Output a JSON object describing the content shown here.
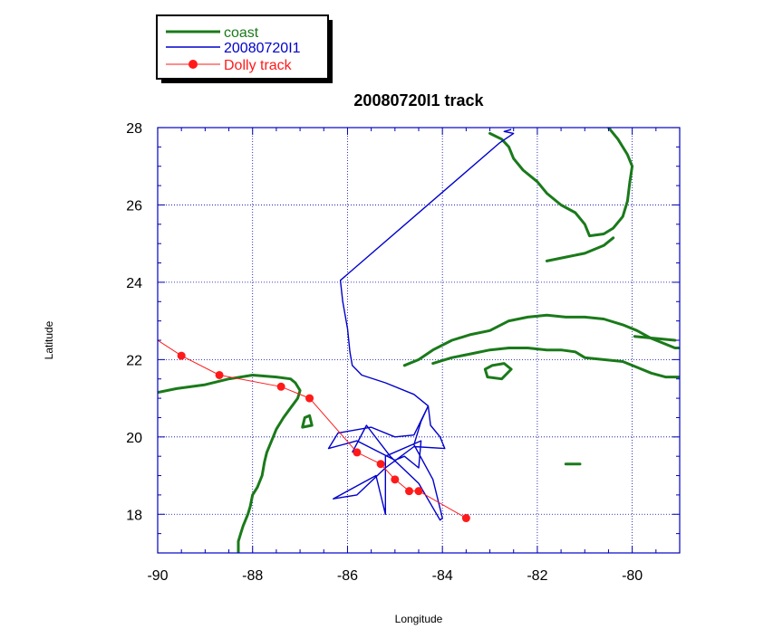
{
  "chart_data": {
    "type": "line",
    "title": "20080720I1 track",
    "xlabel": "Longitude",
    "ylabel": "Latitude",
    "xlim": [
      -90,
      -79
    ],
    "ylim": [
      17,
      28
    ],
    "xticks": [
      -90,
      -88,
      -86,
      -84,
      -82,
      -80
    ],
    "yticks": [
      18,
      20,
      22,
      24,
      26,
      28
    ],
    "xtick_labels": [
      "-90",
      "-88",
      "-86",
      "-84",
      "-82",
      "-80"
    ],
    "ytick_labels": [
      "18",
      "20",
      "22",
      "24",
      "26",
      "28"
    ],
    "grid": true,
    "legend_position": "top-left, outside plot",
    "colors": {
      "coast": "#1a7a1a",
      "flight": "#0000cc",
      "storm": "#ff1a1a",
      "grid": "#0000aa"
    },
    "series": [
      {
        "name": "coast",
        "segments": [
          [
            [
              -90,
              21.15
            ],
            [
              -89.6,
              21.25
            ],
            [
              -89.0,
              21.35
            ],
            [
              -88.5,
              21.5
            ],
            [
              -88.0,
              21.6
            ],
            [
              -87.5,
              21.55
            ],
            [
              -87.2,
              21.5
            ],
            [
              -87.1,
              21.4
            ],
            [
              -87.0,
              21.2
            ],
            [
              -87.05,
              21.0
            ],
            [
              -87.2,
              20.75
            ],
            [
              -87.35,
              20.5
            ],
            [
              -87.5,
              20.2
            ],
            [
              -87.6,
              19.9
            ],
            [
              -87.7,
              19.6
            ],
            [
              -87.75,
              19.35
            ],
            [
              -87.8,
              19.0
            ],
            [
              -87.9,
              18.7
            ],
            [
              -88.0,
              18.5
            ],
            [
              -88.05,
              18.2
            ],
            [
              -88.1,
              18.0
            ],
            [
              -88.2,
              17.7
            ],
            [
              -88.25,
              17.5
            ],
            [
              -88.3,
              17.3
            ],
            [
              -88.3,
              17.0
            ]
          ],
          [
            [
              -86.8,
              20.55
            ],
            [
              -86.75,
              20.3
            ],
            [
              -86.95,
              20.25
            ],
            [
              -86.9,
              20.5
            ],
            [
              -86.8,
              20.55
            ]
          ],
          [
            [
              -83.0,
              27.85
            ],
            [
              -82.75,
              27.7
            ],
            [
              -82.6,
              27.5
            ],
            [
              -82.5,
              27.2
            ],
            [
              -82.3,
              26.9
            ],
            [
              -82.0,
              26.6
            ],
            [
              -81.8,
              26.3
            ],
            [
              -81.5,
              26.0
            ],
            [
              -81.2,
              25.8
            ],
            [
              -81.0,
              25.5
            ],
            [
              -80.9,
              25.2
            ],
            [
              -80.6,
              25.25
            ],
            [
              -80.4,
              25.4
            ],
            [
              -80.2,
              25.7
            ],
            [
              -80.1,
              26.1
            ],
            [
              -80.05,
              26.6
            ],
            [
              -80.0,
              27.0
            ],
            [
              -80.1,
              27.3
            ],
            [
              -80.3,
              27.7
            ],
            [
              -80.5,
              28.0
            ]
          ],
          [
            [
              -81.8,
              24.55
            ],
            [
              -81.4,
              24.65
            ],
            [
              -81.0,
              24.75
            ],
            [
              -80.6,
              24.95
            ],
            [
              -80.4,
              25.15
            ]
          ],
          [
            [
              -84.8,
              21.85
            ],
            [
              -84.5,
              22.0
            ],
            [
              -84.2,
              22.25
            ],
            [
              -83.8,
              22.5
            ],
            [
              -83.4,
              22.65
            ],
            [
              -83.0,
              22.75
            ],
            [
              -82.6,
              23.0
            ],
            [
              -82.2,
              23.1
            ],
            [
              -81.8,
              23.15
            ],
            [
              -81.4,
              23.1
            ],
            [
              -81.0,
              23.1
            ],
            [
              -80.6,
              23.05
            ],
            [
              -80.2,
              22.9
            ],
            [
              -79.9,
              22.75
            ],
            [
              -79.6,
              22.55
            ],
            [
              -79.4,
              22.45
            ],
            [
              -79.1,
              22.3
            ],
            [
              -79.0,
              22.3
            ]
          ],
          [
            [
              -84.2,
              21.9
            ],
            [
              -83.8,
              22.05
            ],
            [
              -83.4,
              22.15
            ],
            [
              -83.0,
              22.25
            ],
            [
              -82.6,
              22.3
            ],
            [
              -82.2,
              22.3
            ],
            [
              -81.8,
              22.25
            ],
            [
              -81.5,
              22.25
            ],
            [
              -81.2,
              22.2
            ],
            [
              -81.0,
              22.05
            ],
            [
              -80.6,
              22.0
            ],
            [
              -80.2,
              21.95
            ],
            [
              -79.9,
              21.8
            ],
            [
              -79.6,
              21.65
            ],
            [
              -79.3,
              21.55
            ],
            [
              -79.0,
              21.55
            ]
          ],
          [
            [
              -82.95,
              21.85
            ],
            [
              -82.7,
              21.9
            ],
            [
              -82.55,
              21.75
            ],
            [
              -82.75,
              21.5
            ],
            [
              -83.05,
              21.55
            ],
            [
              -83.1,
              21.75
            ],
            [
              -82.95,
              21.85
            ]
          ],
          [
            [
              -81.4,
              19.3
            ],
            [
              -81.1,
              19.3
            ]
          ],
          [
            [
              -79.95,
              22.6
            ],
            [
              -79.1,
              22.5
            ]
          ]
        ]
      },
      {
        "name": "20080720I1",
        "points": [
          [
            -82.55,
            27.95
          ],
          [
            -82.7,
            27.9
          ],
          [
            -82.5,
            27.85
          ],
          [
            -82.8,
            27.6
          ],
          [
            -86.15,
            24.05
          ],
          [
            -86.1,
            23.5
          ],
          [
            -86.0,
            22.8
          ],
          [
            -85.95,
            22.2
          ],
          [
            -85.9,
            21.85
          ],
          [
            -85.7,
            21.6
          ],
          [
            -85.2,
            21.4
          ],
          [
            -84.6,
            21.1
          ],
          [
            -84.3,
            20.8
          ],
          [
            -84.25,
            20.3
          ],
          [
            -84.05,
            20.0
          ],
          [
            -83.95,
            19.7
          ],
          [
            -84.6,
            19.75
          ],
          [
            -85.2,
            19.2
          ],
          [
            -85.8,
            18.5
          ],
          [
            -86.3,
            18.4
          ],
          [
            -85.4,
            19.0
          ],
          [
            -85.2,
            18.0
          ],
          [
            -85.2,
            19.5
          ],
          [
            -84.45,
            19.9
          ],
          [
            -84.5,
            19.2
          ],
          [
            -84.8,
            19.5
          ],
          [
            -85.0,
            19.4
          ],
          [
            -85.8,
            19.9
          ],
          [
            -86.4,
            19.7
          ],
          [
            -86.2,
            20.1
          ],
          [
            -85.5,
            20.25
          ],
          [
            -85.0,
            20.0
          ],
          [
            -84.6,
            20.05
          ],
          [
            -84.5,
            20.3
          ],
          [
            -84.3,
            20.8
          ],
          [
            -84.45,
            20.4
          ],
          [
            -84.6,
            19.8
          ],
          [
            -84.2,
            18.9
          ],
          [
            -84.0,
            17.9
          ],
          [
            -84.05,
            17.85
          ],
          [
            -84.5,
            18.8
          ],
          [
            -85.1,
            19.5
          ],
          [
            -85.6,
            20.3
          ],
          [
            -85.9,
            19.6
          ]
        ]
      },
      {
        "name": "Dolly track",
        "points": [
          [
            -90.0,
            22.5
          ],
          [
            -89.5,
            22.1
          ],
          [
            -88.7,
            21.6
          ],
          [
            -87.4,
            21.3
          ],
          [
            -86.8,
            21.0
          ],
          [
            -85.8,
            19.6
          ],
          [
            -85.3,
            19.3
          ],
          [
            -85.0,
            18.9
          ],
          [
            -84.7,
            18.6
          ],
          [
            -84.5,
            18.6
          ],
          [
            -83.5,
            17.9
          ]
        ],
        "markers": [
          [
            -89.5,
            22.1
          ],
          [
            -88.7,
            21.6
          ],
          [
            -87.4,
            21.3
          ],
          [
            -86.8,
            21.0
          ],
          [
            -85.8,
            19.6
          ],
          [
            -85.3,
            19.3
          ],
          [
            -85.0,
            18.9
          ],
          [
            -84.7,
            18.6
          ],
          [
            -84.5,
            18.6
          ],
          [
            -83.5,
            17.9
          ]
        ]
      }
    ]
  }
}
